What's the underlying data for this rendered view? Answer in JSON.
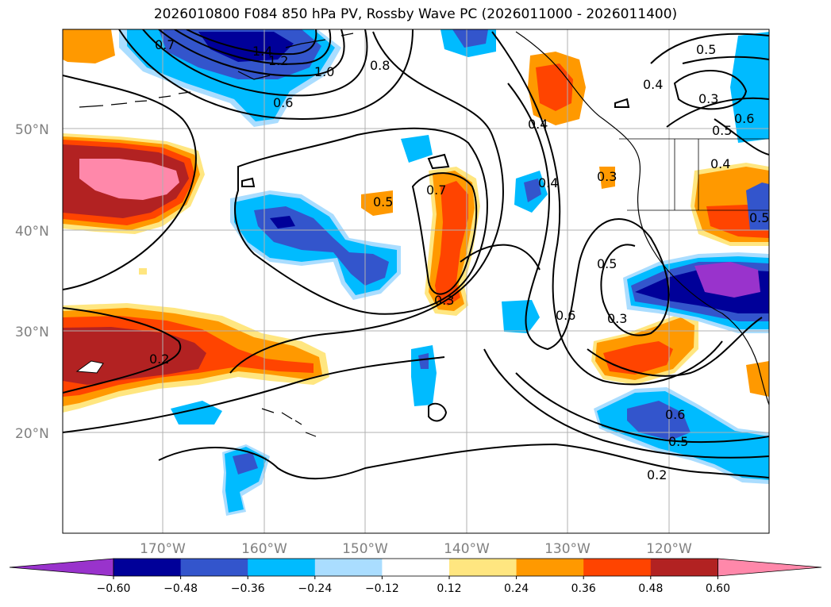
{
  "title": "2026010800 F084 850 hPa PV, Rossby Wave PC (2026011000 - 2026011400)",
  "axes": {
    "lat_labels": [
      "50°N",
      "40°N",
      "30°N",
      "20°N"
    ],
    "lon_labels": [
      "170°W",
      "160°W",
      "150°W",
      "140°W",
      "130°W",
      "120°W"
    ]
  },
  "contour_labels": [
    "0.7",
    "1.4",
    "1.2",
    "1.0",
    "0.8",
    "0.6",
    "0.5",
    "0.4",
    "0.3",
    "0.6",
    "0.5",
    "0.4",
    "0.7",
    "0.5",
    "0.4",
    "0.3",
    "0.4",
    "0.5",
    "0.6",
    "0.3",
    "0.2",
    "0.6",
    "0.5",
    "0.2",
    "0.3",
    "0.5"
  ],
  "colorbar": {
    "tick_labels": [
      "−0.60",
      "−0.48",
      "−0.36",
      "−0.24",
      "−0.12",
      "0.12",
      "0.24",
      "0.36",
      "0.48",
      "0.60"
    ],
    "colors": [
      "#9933cc",
      "#000099",
      "#3355cc",
      "#00bbff",
      "#aaddff",
      "#ffffff",
      "#ffe680",
      "#ff9900",
      "#ff4400",
      "#b22222",
      "#ff88aa"
    ]
  },
  "colors": {
    "gridline": "#b0b0b0",
    "contour": "#000000",
    "coastline": "#000000"
  }
}
